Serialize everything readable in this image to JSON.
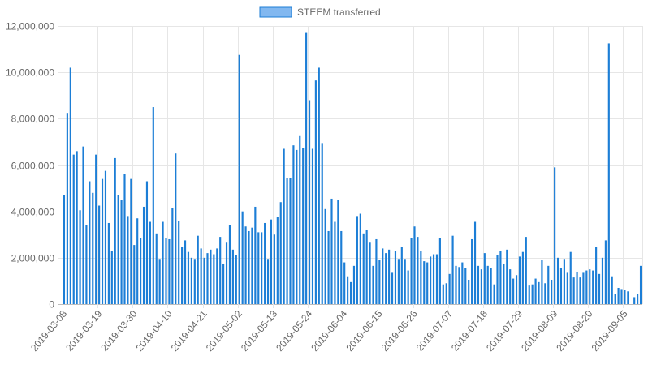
{
  "chart_data": {
    "type": "bar",
    "series": [
      {
        "name": "STEEM transferred",
        "color": "#1c7ed6",
        "fill_light": "#82b8f0",
        "values": [
          4700000,
          8250000,
          10200000,
          6450000,
          6600000,
          4050000,
          6800000,
          3400000,
          5300000,
          4800000,
          6450000,
          4250000,
          5400000,
          5750000,
          3500000,
          2300000,
          6300000,
          4700000,
          4500000,
          5600000,
          3800000,
          5400000,
          2550000,
          3700000,
          2850000,
          4200000,
          5300000,
          3550000,
          8500000,
          3050000,
          1950000,
          3550000,
          2850000,
          2800000,
          4150000,
          6500000,
          3600000,
          2450000,
          2750000,
          2250000,
          2000000,
          1950000,
          2950000,
          2400000,
          2000000,
          2200000,
          2350000,
          2150000,
          2400000,
          2900000,
          1750000,
          2650000,
          3400000,
          2350000,
          2100000,
          10750000,
          4000000,
          3350000,
          3150000,
          3300000,
          4200000,
          3100000,
          3100000,
          3500000,
          1950000,
          3650000,
          3000000,
          3750000,
          4400000,
          6700000,
          5450000,
          5450000,
          6850000,
          6650000,
          7250000,
          6750000,
          11700000,
          8800000,
          6700000,
          9650000,
          10200000,
          6950000,
          4100000,
          3150000,
          4550000,
          3550000,
          4500000,
          3150000,
          1800000,
          1200000,
          950000,
          1650000,
          3800000,
          3900000,
          3050000,
          3200000,
          2650000,
          1650000,
          2800000,
          1900000,
          2400000,
          2200000,
          2350000,
          1350000,
          2300000,
          1950000,
          2450000,
          1950000,
          1450000,
          2850000,
          3350000,
          2900000,
          2300000,
          1850000,
          1800000,
          2050000,
          2150000,
          2150000,
          2850000,
          850000,
          900000,
          1300000,
          2950000,
          1650000,
          1600000,
          1800000,
          1550000,
          1050000,
          2800000,
          3550000,
          1650000,
          1500000,
          2200000,
          1650000,
          1550000,
          850000,
          2100000,
          2300000,
          1750000,
          2350000,
          1500000,
          1100000,
          1250000,
          2050000,
          2250000,
          2900000,
          800000,
          850000,
          1100000,
          950000,
          1900000,
          900000,
          1650000,
          1050000,
          5900000,
          2000000,
          1550000,
          1950000,
          1350000,
          2250000,
          1150000,
          1400000,
          1150000,
          1350000,
          1450000,
          1500000,
          1450000,
          2450000,
          1300000,
          2000000,
          2750000,
          11250000,
          1200000,
          450000,
          700000,
          650000,
          600000,
          550000,
          0,
          300000,
          450000,
          1650000
        ]
      }
    ],
    "x_tick_labels": [
      "2019-03-08",
      "2019-03-19",
      "2019-03-30",
      "2019-04-10",
      "2019-04-21",
      "2019-05-02",
      "2019-05-13",
      "2019-05-24",
      "2019-06-04",
      "2019-06-15",
      "2019-06-26",
      "2019-07-07",
      "2019-07-18",
      "2019-07-29",
      "2019-08-09",
      "2019-08-20",
      "2019-09-05"
    ],
    "y_tick_labels": [
      "0",
      "2,000,000",
      "4,000,000",
      "6,000,000",
      "8,000,000",
      "10,000,000",
      "12,000,000"
    ],
    "y_ticks": [
      0,
      2000000,
      4000000,
      6000000,
      8000000,
      10000000,
      12000000
    ],
    "ylim": [
      0,
      12000000
    ],
    "grid": true,
    "legend_position": "top-center",
    "title": "",
    "xlabel": "",
    "ylabel": ""
  }
}
